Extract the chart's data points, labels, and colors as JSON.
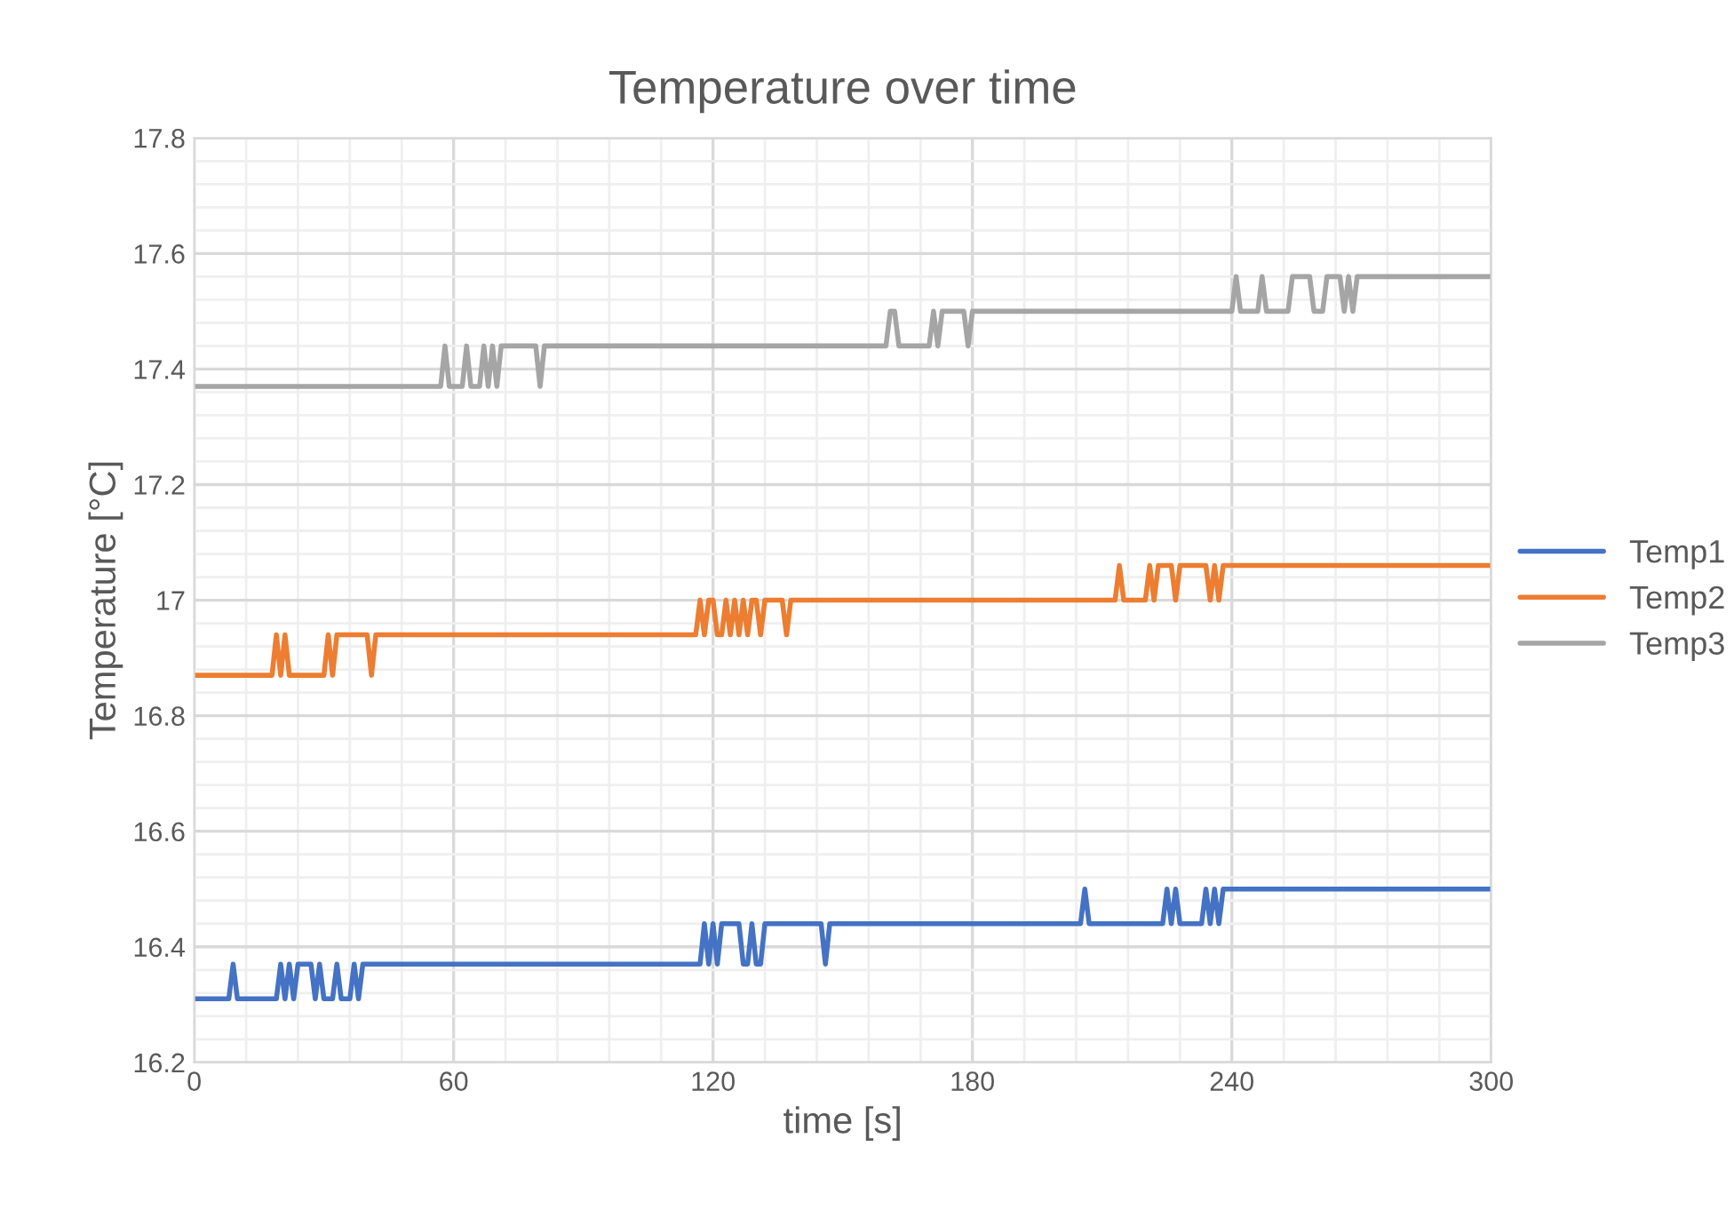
{
  "chart_data": {
    "type": "line",
    "title": "Temperature over time",
    "xlabel": "time [s]",
    "ylabel": "Temperature [°C]",
    "xlim": [
      0,
      300
    ],
    "ylim": [
      16.2,
      17.8
    ],
    "xticks": [
      0,
      {
        "value": 12,
        "label": null
      },
      {
        "value": 24,
        "label": null
      },
      {
        "value": 36,
        "label": null
      },
      {
        "value": 48,
        "label": null
      },
      60,
      {
        "value": 72,
        "label": null
      },
      {
        "value": 84,
        "label": null
      },
      {
        "value": 96,
        "label": null
      },
      {
        "value": 108,
        "label": null
      },
      120,
      {
        "value": 132,
        "label": null
      },
      {
        "value": 144,
        "label": null
      },
      {
        "value": 156,
        "label": null
      },
      {
        "value": 168,
        "label": null
      },
      180,
      {
        "value": 192,
        "label": null
      },
      {
        "value": 204,
        "label": null
      },
      {
        "value": 216,
        "label": null
      },
      {
        "value": 228,
        "label": null
      },
      240,
      {
        "value": 252,
        "label": null
      },
      {
        "value": 264,
        "label": null
      },
      {
        "value": 276,
        "label": null
      },
      {
        "value": 288,
        "label": null
      },
      300
    ],
    "yticks": [
      16.2,
      {
        "value": 16.24,
        "label": null
      },
      {
        "value": 16.28,
        "label": null
      },
      {
        "value": 16.32,
        "label": null
      },
      {
        "value": 16.36,
        "label": null
      },
      16.4,
      {
        "value": 16.44,
        "label": null
      },
      {
        "value": 16.48,
        "label": null
      },
      {
        "value": 16.52,
        "label": null
      },
      {
        "value": 16.56,
        "label": null
      },
      16.6,
      {
        "value": 16.64,
        "label": null
      },
      {
        "value": 16.68,
        "label": null
      },
      {
        "value": 16.72,
        "label": null
      },
      {
        "value": 16.76,
        "label": null
      },
      16.8,
      {
        "value": 16.84,
        "label": null
      },
      {
        "value": 16.88,
        "label": null
      },
      {
        "value": 16.92,
        "label": null
      },
      {
        "value": 16.96,
        "label": null
      },
      {
        "value": 17.0,
        "label": "17"
      },
      {
        "value": 17.04,
        "label": null
      },
      {
        "value": 17.08,
        "label": null
      },
      {
        "value": 17.12,
        "label": null
      },
      {
        "value": 17.16,
        "label": null
      },
      17.2,
      {
        "value": 17.24,
        "label": null
      },
      {
        "value": 17.28,
        "label": null
      },
      {
        "value": 17.32,
        "label": null
      },
      {
        "value": 17.36,
        "label": null
      },
      17.4,
      {
        "value": 17.44,
        "label": null
      },
      {
        "value": 17.48,
        "label": null
      },
      {
        "value": 17.52,
        "label": null
      },
      {
        "value": 17.56,
        "label": null
      },
      17.6,
      {
        "value": 17.64,
        "label": null
      },
      {
        "value": 17.68,
        "label": null
      },
      {
        "value": 17.72,
        "label": null
      },
      {
        "value": 17.76,
        "label": null
      },
      17.8
    ],
    "grid": true,
    "legend": "right",
    "marker": "none",
    "line_style": "solid",
    "series": [
      {
        "name": "Temp1",
        "color": "#4472c4",
        "x": [
          0,
          8,
          9,
          10,
          19,
          20,
          21,
          22,
          23,
          24,
          27,
          28,
          29,
          30,
          32,
          33,
          34,
          36,
          37,
          38,
          39,
          117,
          118,
          119,
          120,
          121,
          122,
          126,
          127,
          128,
          129,
          130,
          131,
          132,
          145,
          146,
          147,
          205,
          206,
          207,
          224,
          225,
          226,
          227,
          228,
          233,
          234,
          235,
          236,
          237,
          238,
          300
        ],
        "values": [
          16.31,
          16.31,
          16.37,
          16.31,
          16.31,
          16.37,
          16.31,
          16.37,
          16.31,
          16.37,
          16.37,
          16.31,
          16.37,
          16.31,
          16.31,
          16.37,
          16.31,
          16.31,
          16.37,
          16.31,
          16.37,
          16.37,
          16.44,
          16.37,
          16.44,
          16.37,
          16.44,
          16.44,
          16.37,
          16.37,
          16.44,
          16.37,
          16.37,
          16.44,
          16.44,
          16.37,
          16.44,
          16.44,
          16.5,
          16.44,
          16.44,
          16.5,
          16.44,
          16.5,
          16.44,
          16.44,
          16.5,
          16.44,
          16.5,
          16.44,
          16.5,
          16.5
        ]
      },
      {
        "name": "Temp2",
        "color": "#ed7d31",
        "x": [
          0,
          18,
          19,
          20,
          21,
          22,
          30,
          31,
          32,
          33,
          40,
          41,
          42,
          116,
          117,
          118,
          119,
          120,
          121,
          122,
          123,
          124,
          125,
          126,
          127,
          128,
          129,
          130,
          131,
          132,
          136,
          137,
          138,
          213,
          214,
          215,
          220,
          221,
          222,
          223,
          226,
          227,
          228,
          234,
          235,
          236,
          237,
          238,
          300
        ],
        "values": [
          16.87,
          16.87,
          16.94,
          16.87,
          16.94,
          16.87,
          16.87,
          16.94,
          16.87,
          16.94,
          16.94,
          16.87,
          16.94,
          16.94,
          17.0,
          16.94,
          17.0,
          17.0,
          16.94,
          16.94,
          17.0,
          16.94,
          17.0,
          16.94,
          17.0,
          16.94,
          17.0,
          17.0,
          16.94,
          17.0,
          17.0,
          16.94,
          17.0,
          17.0,
          17.06,
          17.0,
          17.0,
          17.06,
          17.0,
          17.06,
          17.06,
          17.0,
          17.06,
          17.06,
          17.0,
          17.06,
          17.0,
          17.06,
          17.06
        ]
      },
      {
        "name": "Temp3",
        "color": "#a5a5a5",
        "x": [
          0,
          57,
          58,
          59,
          62,
          63,
          64,
          66,
          67,
          68,
          69,
          70,
          71,
          79,
          80,
          81,
          160,
          161,
          162,
          163,
          170,
          171,
          172,
          173,
          174,
          178,
          179,
          180,
          240,
          241,
          242,
          246,
          247,
          248,
          253,
          254,
          258,
          259,
          261,
          262,
          265,
          266,
          267,
          268,
          269,
          300
        ],
        "values": [
          17.37,
          17.37,
          17.44,
          17.37,
          17.37,
          17.44,
          17.37,
          17.37,
          17.44,
          17.37,
          17.44,
          17.37,
          17.44,
          17.44,
          17.37,
          17.44,
          17.44,
          17.5,
          17.5,
          17.44,
          17.44,
          17.5,
          17.44,
          17.5,
          17.5,
          17.5,
          17.44,
          17.5,
          17.5,
          17.56,
          17.5,
          17.5,
          17.56,
          17.5,
          17.5,
          17.56,
          17.56,
          17.5,
          17.5,
          17.56,
          17.56,
          17.5,
          17.56,
          17.5,
          17.56,
          17.56
        ]
      }
    ]
  }
}
